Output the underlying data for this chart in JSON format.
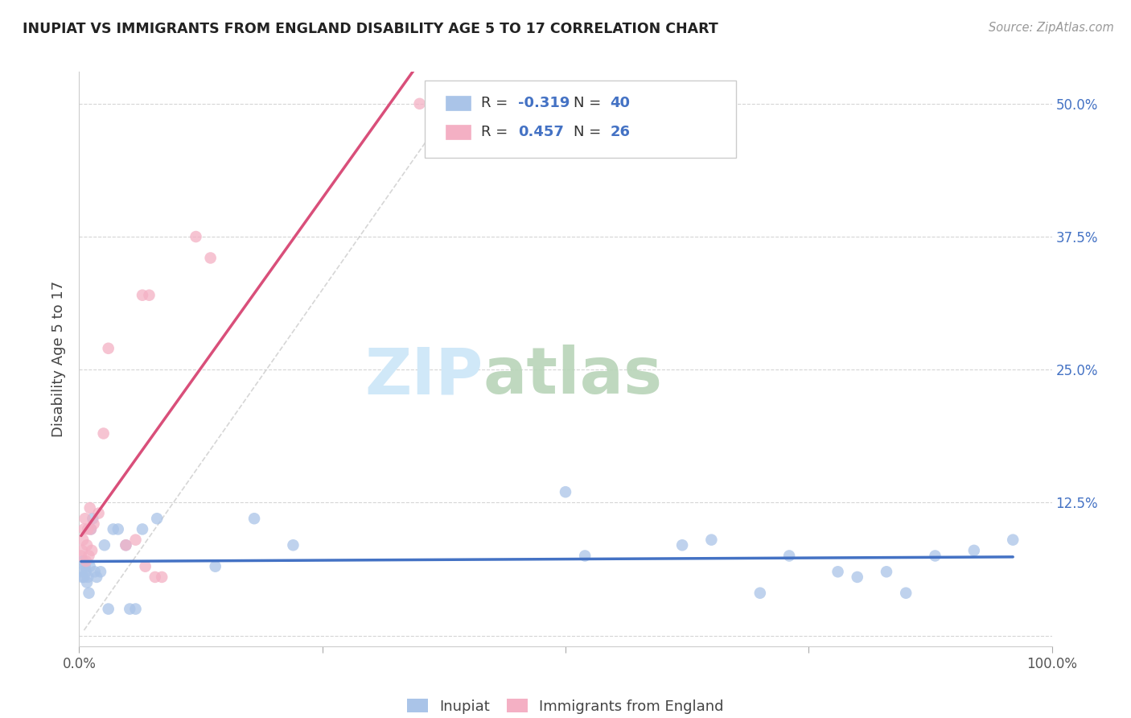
{
  "title": "INUPIAT VS IMMIGRANTS FROM ENGLAND DISABILITY AGE 5 TO 17 CORRELATION CHART",
  "source": "Source: ZipAtlas.com",
  "ylabel": "Disability Age 5 to 17",
  "xlim": [
    0,
    1.0
  ],
  "ylim": [
    -0.01,
    0.53
  ],
  "yticks": [
    0.0,
    0.125,
    0.25,
    0.375,
    0.5
  ],
  "yticklabels": [
    "",
    "12.5%",
    "25.0%",
    "37.5%",
    "50.0%"
  ],
  "xticks": [
    0.0,
    0.25,
    0.5,
    0.75,
    1.0
  ],
  "xticklabels": [
    "0.0%",
    "",
    "",
    "",
    "100.0%"
  ],
  "inupiat_color": "#aac4e8",
  "england_color": "#f4b0c4",
  "inupiat_line_color": "#4472c4",
  "england_line_color": "#d94f7a",
  "legend_R1": "-0.319",
  "legend_N1": "40",
  "legend_R2": "0.457",
  "legend_N2": "26",
  "legend_label1": "Inupiat",
  "legend_label2": "Immigrants from England",
  "inupiat_x": [
    0.002,
    0.003,
    0.004,
    0.005,
    0.006,
    0.007,
    0.008,
    0.009,
    0.01,
    0.011,
    0.012,
    0.014,
    0.016,
    0.018,
    0.022,
    0.026,
    0.03,
    0.035,
    0.04,
    0.048,
    0.052,
    0.058,
    0.065,
    0.08,
    0.14,
    0.18,
    0.22,
    0.5,
    0.52,
    0.62,
    0.65,
    0.7,
    0.73,
    0.78,
    0.8,
    0.83,
    0.85,
    0.88,
    0.92,
    0.96
  ],
  "inupiat_y": [
    0.06,
    0.055,
    0.07,
    0.055,
    0.065,
    0.06,
    0.05,
    0.055,
    0.04,
    0.065,
    0.1,
    0.11,
    0.06,
    0.055,
    0.06,
    0.085,
    0.025,
    0.1,
    0.1,
    0.085,
    0.025,
    0.025,
    0.1,
    0.11,
    0.065,
    0.11,
    0.085,
    0.135,
    0.075,
    0.085,
    0.09,
    0.04,
    0.075,
    0.06,
    0.055,
    0.06,
    0.04,
    0.075,
    0.08,
    0.09
  ],
  "england_x": [
    0.002,
    0.003,
    0.004,
    0.005,
    0.006,
    0.007,
    0.008,
    0.009,
    0.01,
    0.011,
    0.012,
    0.013,
    0.015,
    0.02,
    0.025,
    0.03,
    0.048,
    0.058,
    0.065,
    0.068,
    0.072,
    0.078,
    0.085,
    0.12,
    0.135,
    0.35
  ],
  "england_y": [
    0.075,
    0.08,
    0.09,
    0.1,
    0.11,
    0.07,
    0.085,
    0.1,
    0.075,
    0.12,
    0.1,
    0.08,
    0.105,
    0.115,
    0.19,
    0.27,
    0.085,
    0.09,
    0.32,
    0.065,
    0.32,
    0.055,
    0.055,
    0.375,
    0.355,
    0.5
  ],
  "ref_line_x": [
    0.005,
    0.38
  ],
  "ref_line_y": [
    0.005,
    0.495
  ],
  "bg_color": "#ffffff",
  "grid_color": "#d5d5d5",
  "tick_color": "#888888",
  "label_color": "#4472c4",
  "title_color": "#222222"
}
